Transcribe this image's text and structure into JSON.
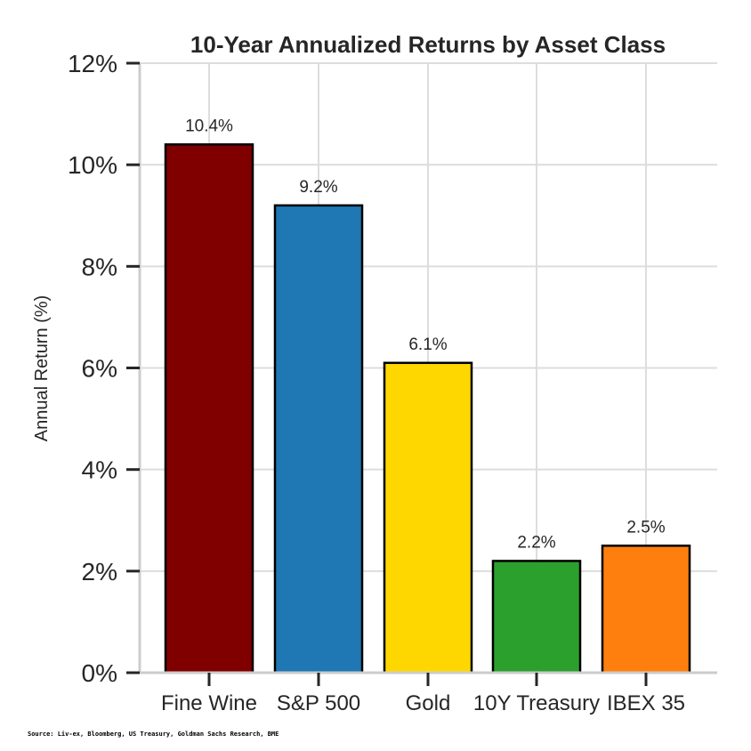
{
  "chart_data": {
    "type": "bar",
    "title": "10-Year Annualized Returns by Asset Class",
    "ylabel": "Annual Return (%)",
    "xlabel": "",
    "categories": [
      "Fine Wine",
      "S&P 500",
      "Gold",
      "10Y Treasury",
      "IBEX 35"
    ],
    "values": [
      10.4,
      9.2,
      6.1,
      2.2,
      2.5
    ],
    "value_labels": [
      "10.4%",
      "9.2%",
      "6.1%",
      "2.2%",
      "2.5%"
    ],
    "colors": [
      "#800000",
      "#1f77b4",
      "#ffd700",
      "#2ca02c",
      "#ff7f0e"
    ],
    "ylim": [
      0,
      12
    ],
    "yticks": [
      0,
      2,
      4,
      6,
      8,
      10,
      12
    ],
    "ytick_labels": [
      "0%",
      "2%",
      "4%",
      "6%",
      "8%",
      "10%",
      "12%"
    ],
    "grid": true,
    "source": "Source: Liv-ex, Bloomberg, US Treasury, Goldman Sachs Research, BME"
  }
}
